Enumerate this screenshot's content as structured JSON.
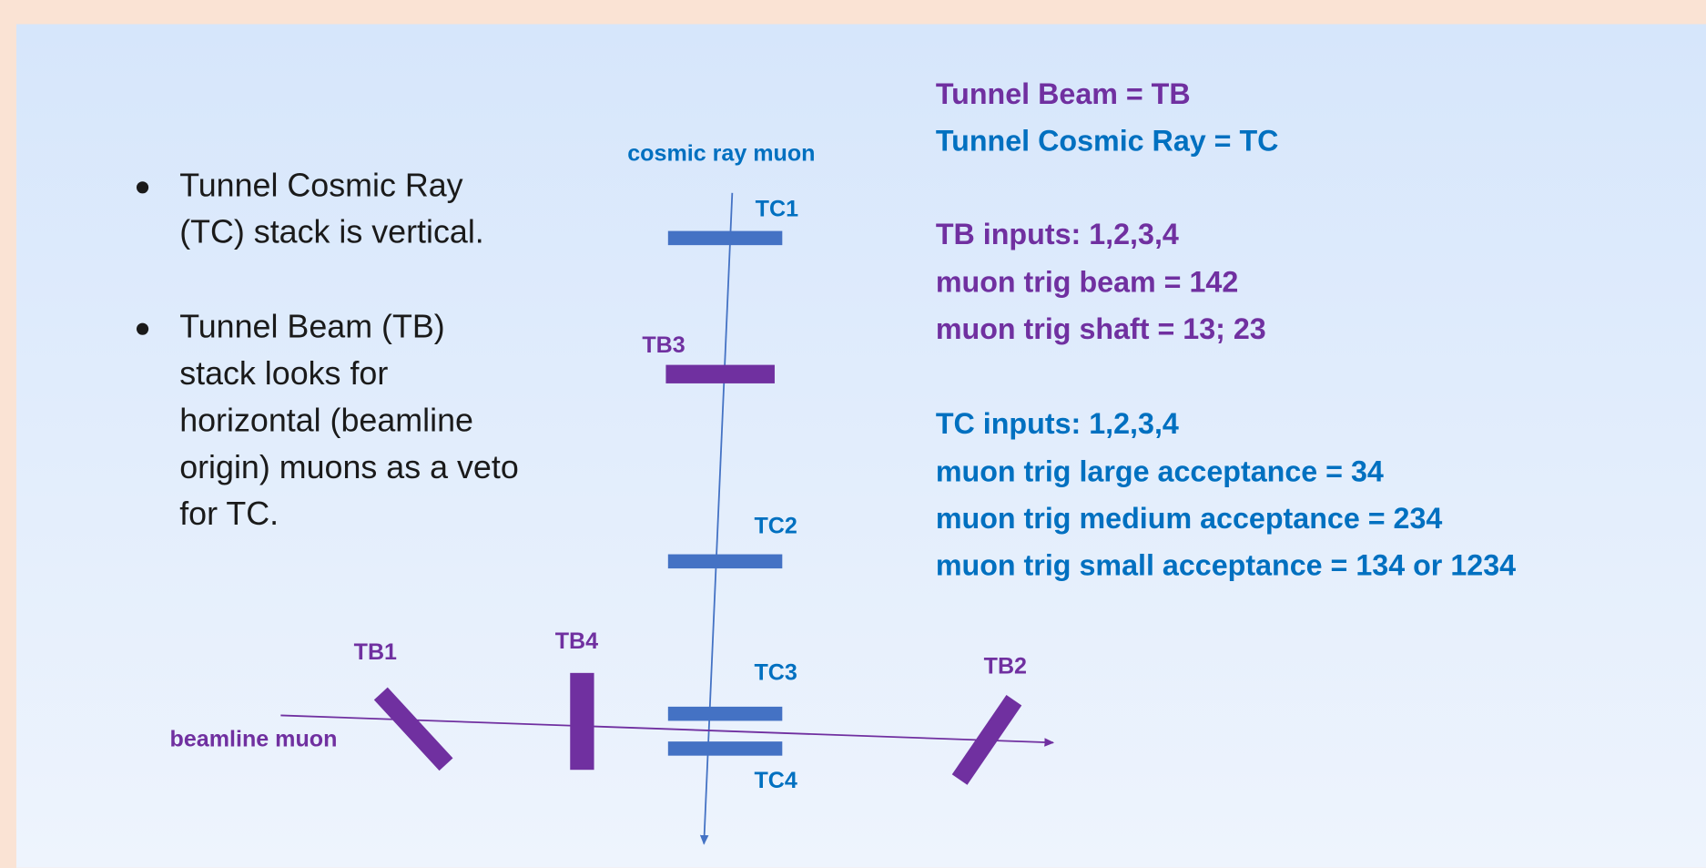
{
  "bullets": [
    {
      "lines": [
        "Tunnel Cosmic Ray",
        "(TC) stack is vertical."
      ]
    },
    {
      "lines": [
        "Tunnel Beam (TB)",
        "stack looks for",
        "horizontal (beamline",
        "origin) muons as a veto",
        "for TC."
      ]
    }
  ],
  "diagram": {
    "cosmic_label": "cosmic ray muon",
    "beam_label": "beamline muon",
    "detectors": {
      "tc1": "TC1",
      "tc2": "TC2",
      "tc3": "TC3",
      "tc4": "TC4",
      "tb1": "TB1",
      "tb2": "TB2",
      "tb3": "TB3",
      "tb4": "TB4"
    }
  },
  "legend": {
    "definitions": [
      "Tunnel Beam = TB",
      "Tunnel Cosmic Ray = TC"
    ],
    "tb": [
      "TB inputs: 1,2,3,4",
      "muon trig beam = 142",
      "muon trig shaft = 13; 23"
    ],
    "tc": [
      "TC inputs: 1,2,3,4",
      "muon trig large acceptance = 34",
      "muon trig medium acceptance = 234",
      "muon trig small acceptance = 134 or 1234"
    ]
  }
}
